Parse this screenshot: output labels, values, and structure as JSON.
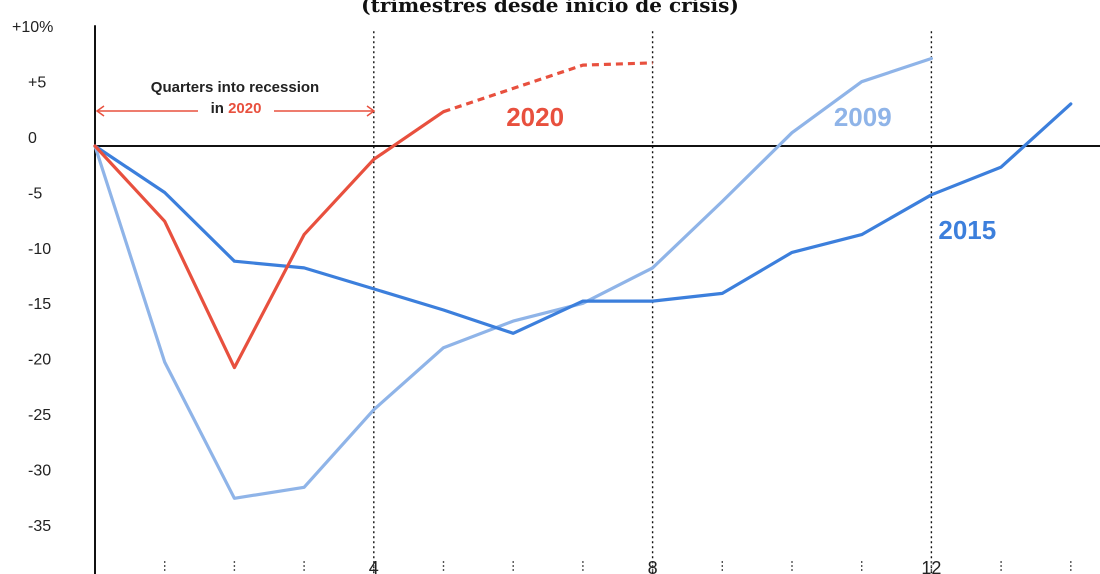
{
  "subtitle": "(trimestres desde inicio de crisis)",
  "annotation": {
    "line1": "Quarters into recession",
    "line2_prefix": "in ",
    "line2_highlight": "2020"
  },
  "colors": {
    "s2020": "#e8503e",
    "s2009": "#8fb4e8",
    "s2015": "#3c7fdc",
    "axis": "#111111",
    "grid": "#b9b9b9"
  },
  "chart_data": {
    "type": "line",
    "title": "",
    "subtitle": "(trimestres desde inicio de crisis)",
    "xlabel": "",
    "ylabel": "",
    "xlim": [
      0,
      14
    ],
    "ylim": [
      -38,
      10
    ],
    "x_ticks": [
      {
        "value": 4,
        "label": "4"
      },
      {
        "value": 8,
        "label": "8"
      },
      {
        "value": 12,
        "label": "12"
      }
    ],
    "y_ticks": [
      {
        "value": 10,
        "label": "+10%"
      },
      {
        "value": 5,
        "label": "+5"
      },
      {
        "value": 0,
        "label": "0"
      },
      {
        "value": -5,
        "label": "-5"
      },
      {
        "value": -10,
        "label": "-10"
      },
      {
        "value": -15,
        "label": "-15"
      },
      {
        "value": -20,
        "label": "-20"
      },
      {
        "value": -25,
        "label": "-25"
      },
      {
        "value": -30,
        "label": "-30"
      },
      {
        "value": -35,
        "label": "-35"
      }
    ],
    "grid": "dotted vertical lines at 4, 8, 12",
    "series": [
      {
        "name": "2020",
        "key": "s2020",
        "points": [
          [
            0,
            0
          ],
          [
            1,
            -6.8
          ],
          [
            2,
            -20
          ],
          [
            3,
            -8
          ],
          [
            4,
            -1.2
          ],
          [
            5,
            3.1
          ]
        ],
        "projected": [
          [
            5,
            3.1
          ],
          [
            6,
            5.2
          ],
          [
            7,
            7.3
          ],
          [
            8,
            7.5
          ]
        ],
        "label_at": [
          5.9,
          1.8
        ]
      },
      {
        "name": "2009",
        "key": "s2009",
        "points": [
          [
            0,
            0
          ],
          [
            1,
            -19.5
          ],
          [
            2,
            -31.8
          ],
          [
            3,
            -30.8
          ],
          [
            4,
            -23.8
          ],
          [
            5,
            -18.2
          ],
          [
            6,
            -15.8
          ],
          [
            7,
            -14.2
          ],
          [
            8,
            -11
          ],
          [
            9,
            -5
          ],
          [
            10,
            1.2
          ],
          [
            11,
            5.8
          ],
          [
            12,
            7.9
          ]
        ],
        "label_at": [
          10.6,
          1.8
        ]
      },
      {
        "name": "2015",
        "key": "s2015",
        "points": [
          [
            0,
            0
          ],
          [
            1,
            -4.2
          ],
          [
            2,
            -10.4
          ],
          [
            3,
            -11
          ],
          [
            4,
            -12.9
          ],
          [
            5,
            -14.8
          ],
          [
            6,
            -16.9
          ],
          [
            7,
            -14
          ],
          [
            8,
            -14
          ],
          [
            9,
            -13.3
          ],
          [
            10,
            -9.6
          ],
          [
            11,
            -8
          ],
          [
            12,
            -4.4
          ],
          [
            13,
            -1.9
          ],
          [
            14,
            3.8
          ]
        ],
        "label_at": [
          12.1,
          -8.4
        ]
      }
    ]
  }
}
